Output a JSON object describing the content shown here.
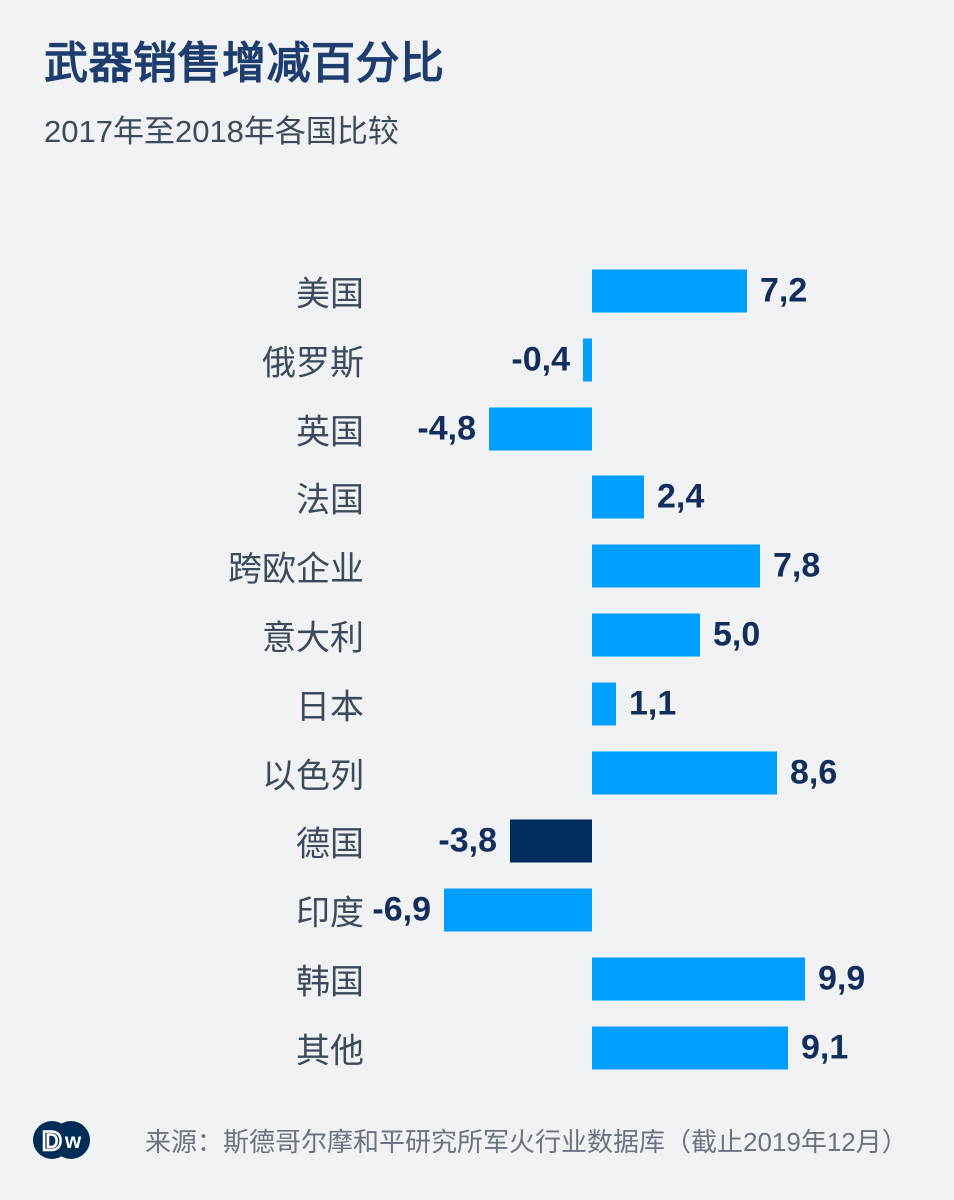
{
  "header": {
    "title": "武器销售增减百分比",
    "subtitle": "2017年至2018年各国比较"
  },
  "chart_data": {
    "type": "bar",
    "orientation": "horizontal",
    "title": "武器销售增减百分比",
    "subtitle": "2017年至2018年各国比较",
    "unit": "percent",
    "categories": [
      "美国",
      "俄罗斯",
      "英国",
      "法国",
      "跨欧企业",
      "意大利",
      "日本",
      "以色列",
      "德国",
      "印度",
      "韩国",
      "其他"
    ],
    "values": [
      7.2,
      -0.4,
      -4.8,
      2.4,
      7.8,
      5.0,
      1.1,
      8.6,
      -3.8,
      -6.9,
      9.9,
      9.1
    ],
    "value_labels": [
      "7,2",
      "-0,4",
      "-4,8",
      "2,4",
      "7,8",
      "5,0",
      "1,1",
      "8,6",
      "-3,8",
      "-6,9",
      "9,9",
      "9,1"
    ],
    "value_decimal_separator": ",",
    "highlight_category": "德国",
    "baseline": 0,
    "xlim": [
      -7.5,
      10.5
    ],
    "grid": false,
    "legend": false,
    "xlabel": "",
    "ylabel": "",
    "colors": {
      "bar": "#009fff",
      "highlight": "#002f5e",
      "value_text": "#132e5c",
      "label_text": "#3d4a5c"
    }
  },
  "footer": {
    "source": "来源：斯德哥尔摩和平研究所军火行业数据库（截止2019年12月）",
    "logo": "dw-logo",
    "logo_color": "#002d55"
  }
}
